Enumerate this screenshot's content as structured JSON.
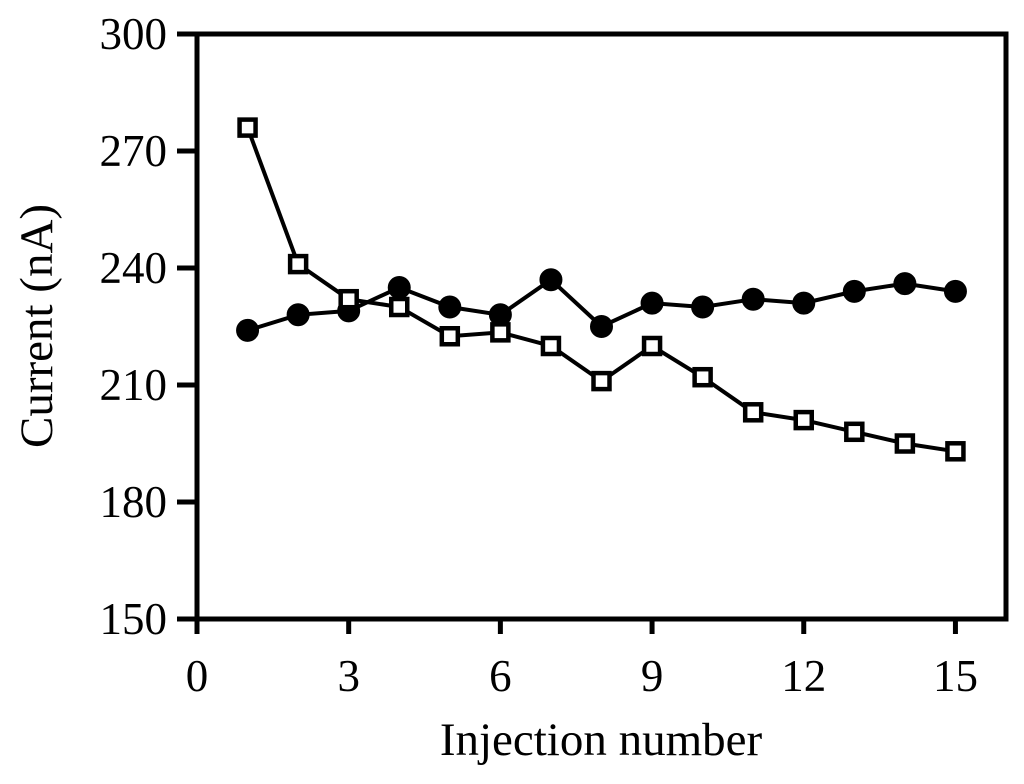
{
  "figure": {
    "background_color": "#ffffff",
    "ink_color": "#000000",
    "open_marker_fill": "#ffffff"
  },
  "chart_data": {
    "type": "line",
    "title": "",
    "xlabel": "Injection number",
    "ylabel": "Current (nA)",
    "x": [
      1,
      2,
      3,
      4,
      5,
      6,
      7,
      8,
      9,
      10,
      11,
      12,
      13,
      14,
      15
    ],
    "series": [
      {
        "name": "filled-circles-series",
        "marker": "circle",
        "marker_fill": "#000000",
        "values": [
          224,
          228,
          229,
          235,
          230,
          228,
          237,
          225,
          231,
          230,
          232,
          231,
          234,
          236,
          234
        ]
      },
      {
        "name": "open-squares-series",
        "marker": "square",
        "marker_fill": "#ffffff",
        "values": [
          276,
          241,
          232,
          230,
          222.5,
          223.5,
          220,
          211,
          220,
          212,
          203,
          201,
          198,
          195,
          193
        ]
      }
    ],
    "xlim": [
      0,
      16
    ],
    "ylim": [
      150,
      300
    ],
    "x_ticks": [
      0,
      3,
      6,
      9,
      12,
      15
    ],
    "y_ticks": [
      150,
      180,
      210,
      240,
      270,
      300
    ],
    "grid": false,
    "legend": "none"
  }
}
